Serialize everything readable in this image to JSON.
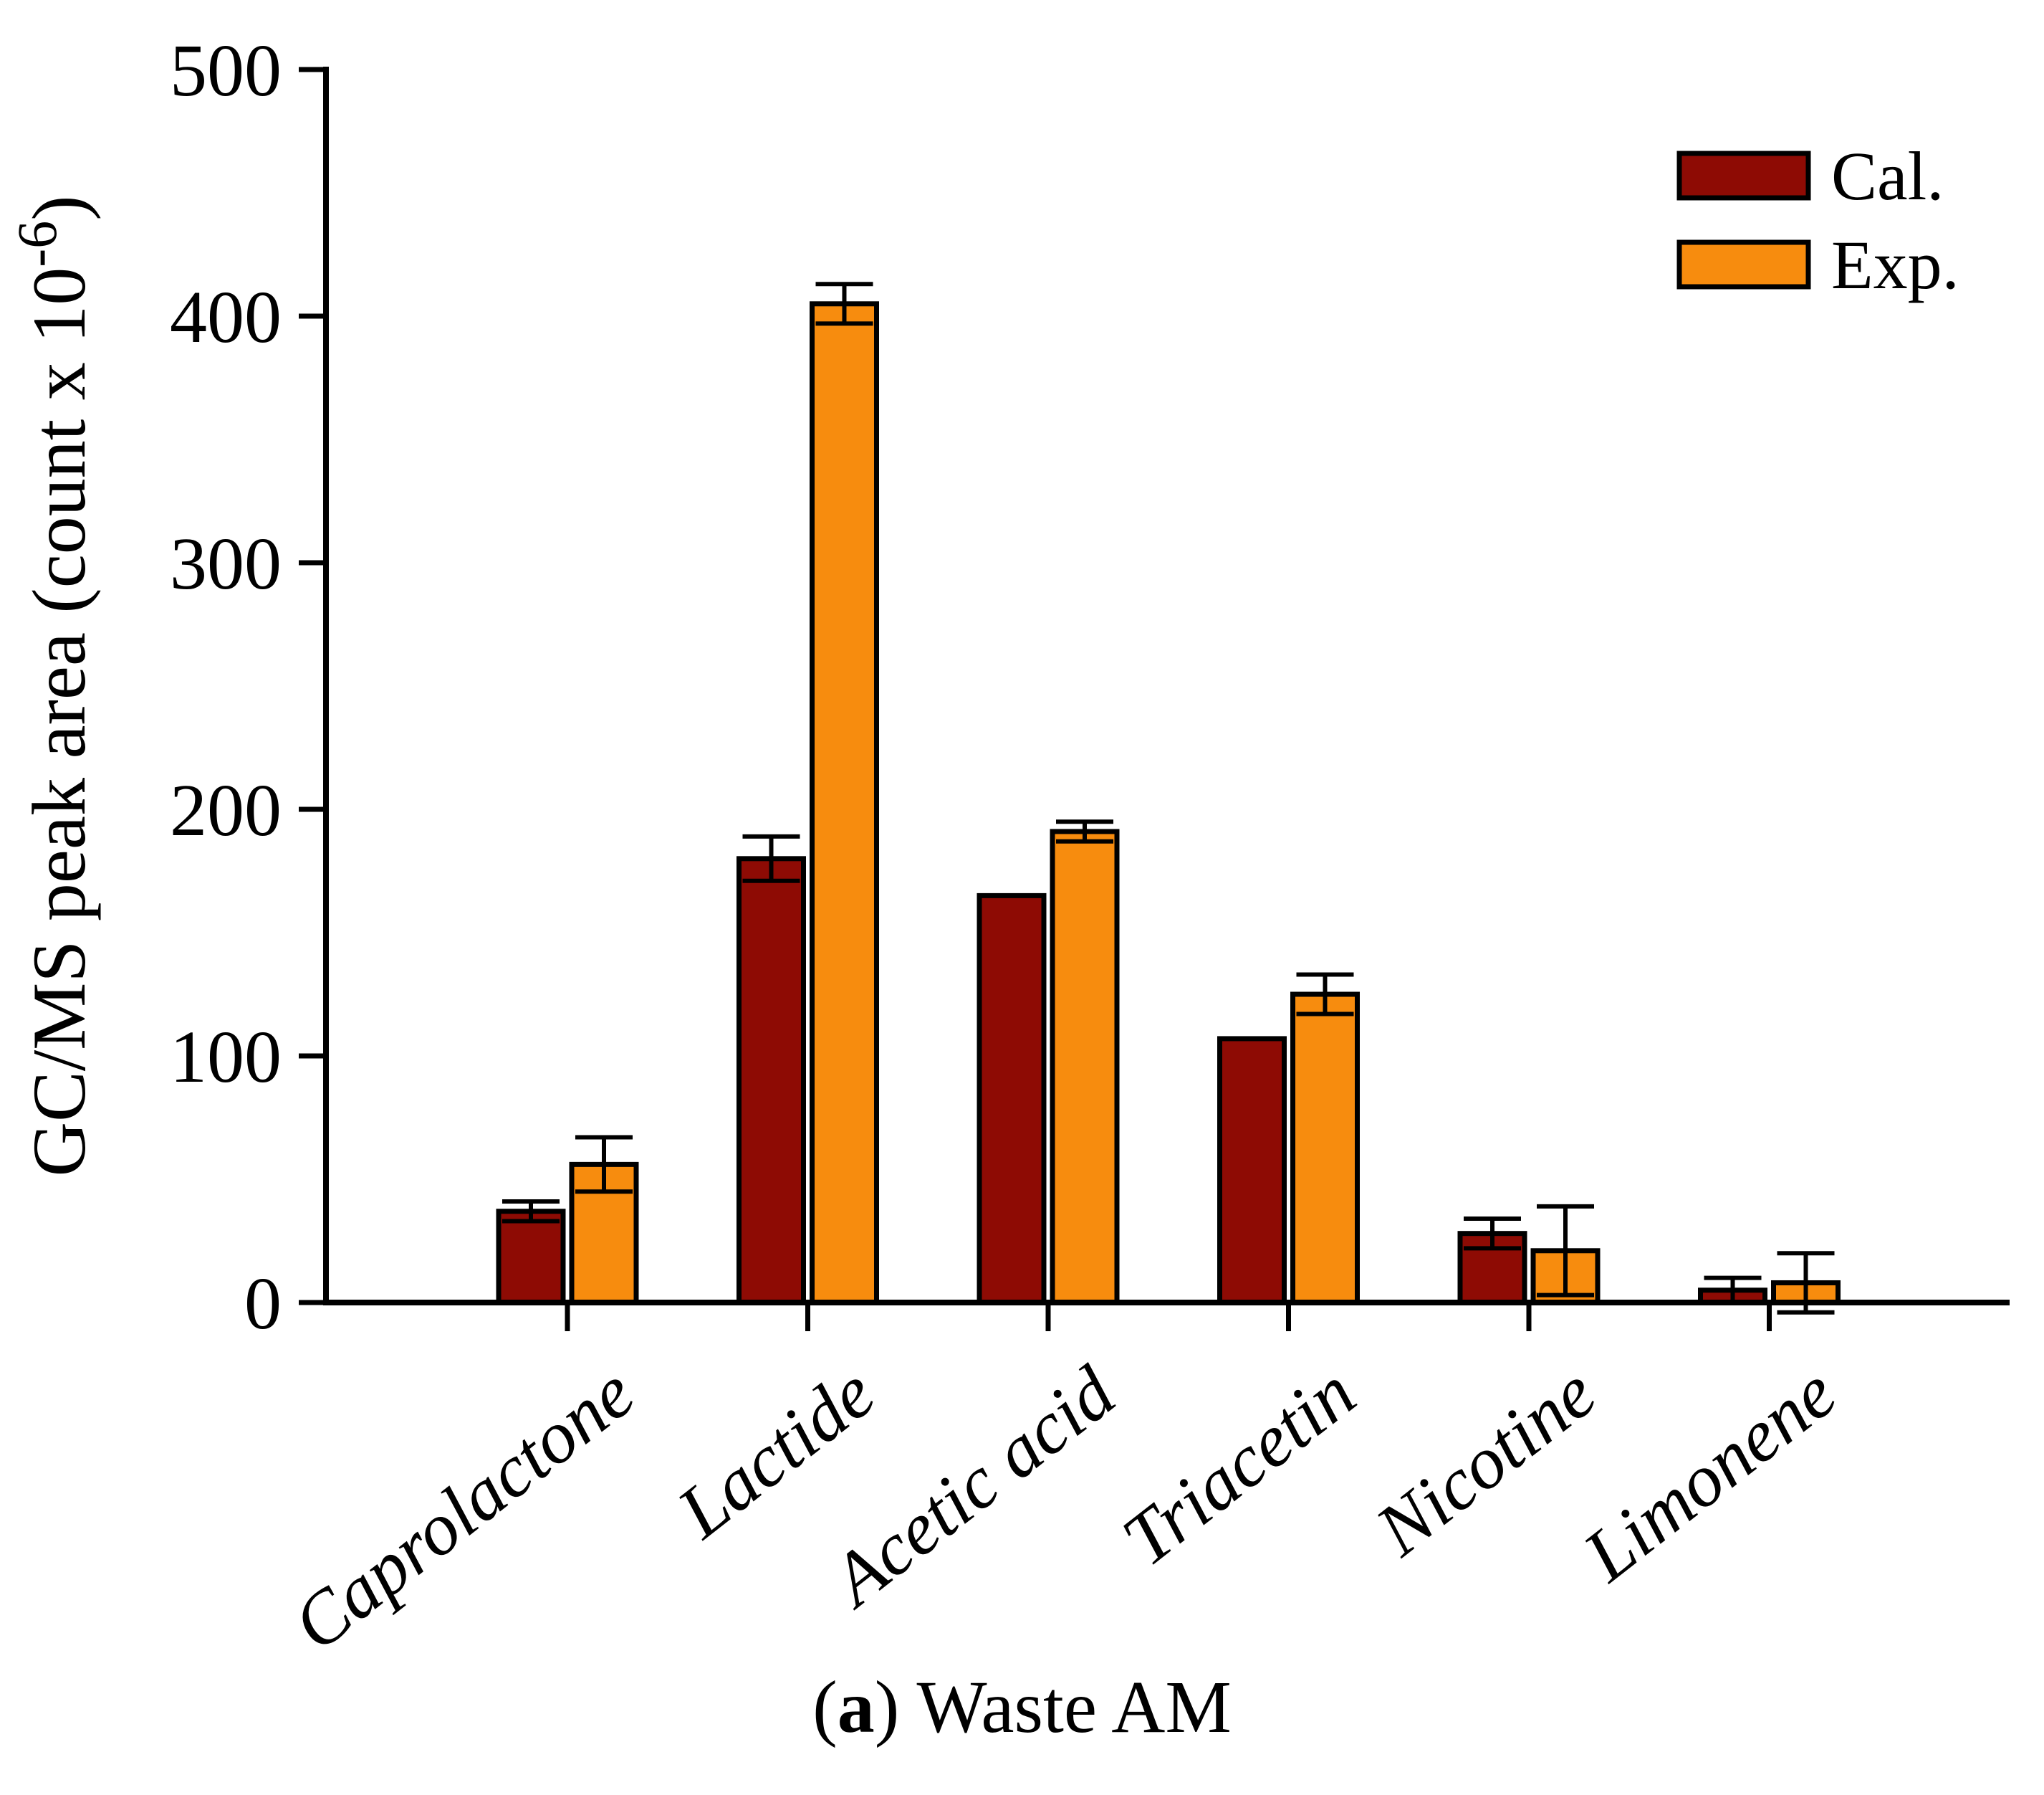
{
  "caption": {
    "open": "(",
    "letter": "a",
    "close": ") Waste AM"
  },
  "chart_data": {
    "type": "bar",
    "title": "",
    "ylabel_base": "GC/MS peak area (count x 10",
    "ylabel_sup": "-6",
    "ylabel_end": ")",
    "xlabel": "",
    "ylim": [
      0,
      500
    ],
    "yticks": [
      0,
      100,
      200,
      300,
      400,
      500
    ],
    "grid": false,
    "legend_position": "top-right",
    "categories": [
      "Caprolactone",
      "Lactide",
      "Acetic acid",
      "Triacetin",
      "Nicotine",
      "Limonene"
    ],
    "series": [
      {
        "name": "Cal.",
        "color": "#8E0B04",
        "values": [
          37,
          180,
          165,
          107,
          28,
          5
        ],
        "errors": [
          4,
          9,
          0,
          0,
          6,
          5
        ]
      },
      {
        "name": "Exp.",
        "color": "#F78C0E",
        "values": [
          56,
          405,
          191,
          125,
          21,
          8
        ],
        "errors": [
          11,
          8,
          4,
          8,
          18,
          12
        ]
      }
    ],
    "axis_color": "#000000"
  }
}
